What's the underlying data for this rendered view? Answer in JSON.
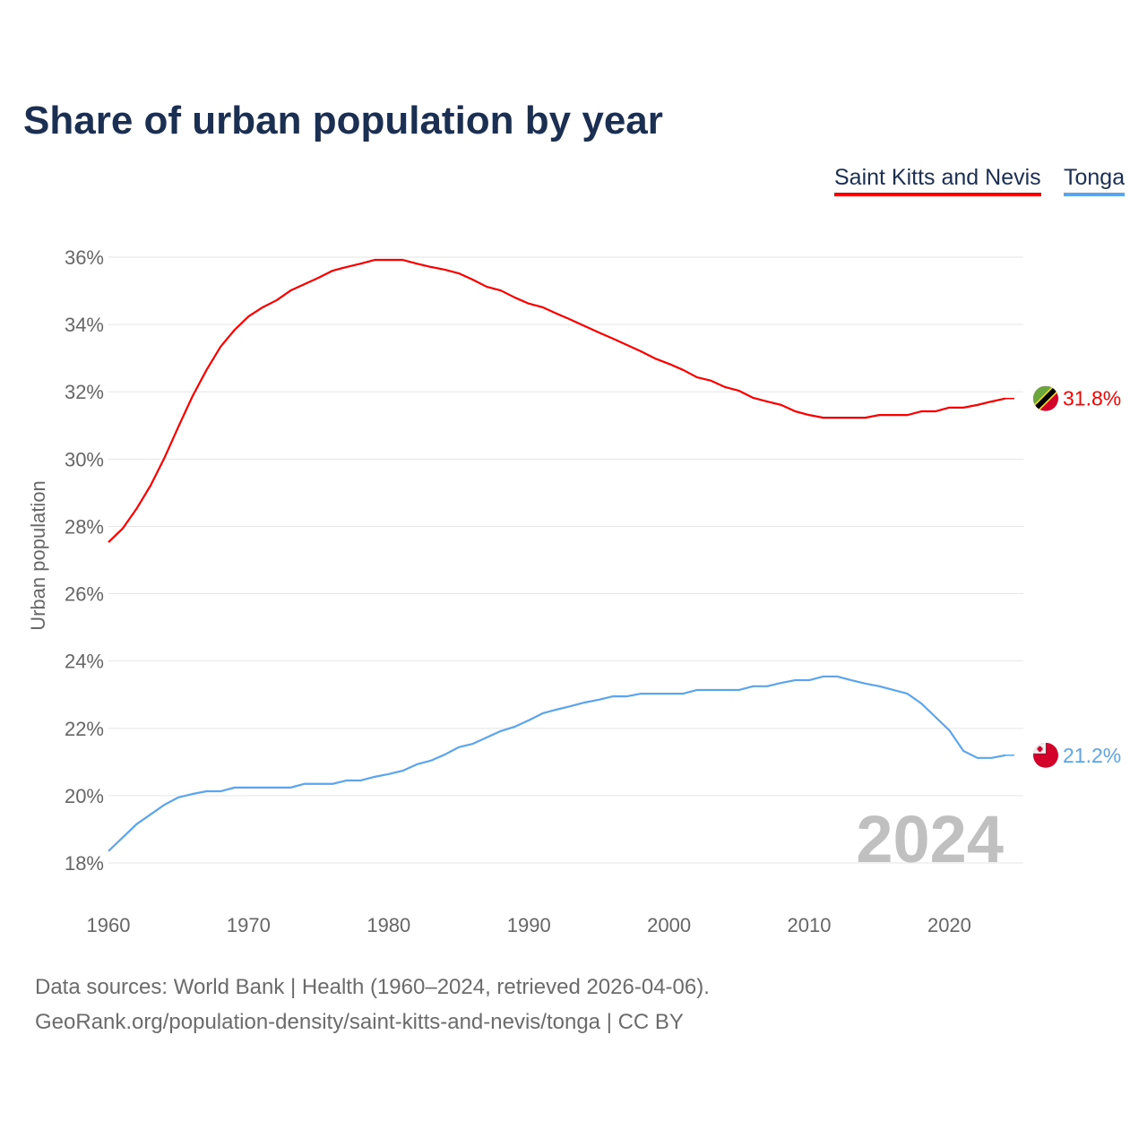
{
  "chart_data": {
    "type": "line",
    "title": "Share of urban population by year",
    "ylabel": "Urban population",
    "xlabel": "",
    "ylim": [
      18,
      36
    ],
    "xlim": [
      1960,
      2024
    ],
    "yticks": [
      "18%",
      "20%",
      "22%",
      "24%",
      "26%",
      "28%",
      "30%",
      "32%",
      "34%",
      "36%"
    ],
    "ytick_values": [
      18,
      20,
      22,
      24,
      26,
      28,
      30,
      32,
      34,
      36
    ],
    "xticks": [
      "1960",
      "1970",
      "1980",
      "1990",
      "2000",
      "2010",
      "2020"
    ],
    "xtick_values": [
      1960,
      1970,
      1980,
      1990,
      2000,
      2010,
      2020
    ],
    "grid": true,
    "legend_position": "top-right",
    "year_watermark": "2024",
    "x": [
      1960,
      1961,
      1962,
      1963,
      1964,
      1965,
      1966,
      1967,
      1968,
      1969,
      1970,
      1971,
      1972,
      1973,
      1974,
      1975,
      1976,
      1977,
      1978,
      1979,
      1980,
      1981,
      1982,
      1983,
      1984,
      1985,
      1986,
      1987,
      1988,
      1989,
      1990,
      1991,
      1992,
      1993,
      1994,
      1995,
      1996,
      1997,
      1998,
      1999,
      2000,
      2001,
      2002,
      2003,
      2004,
      2005,
      2006,
      2007,
      2008,
      2009,
      2010,
      2011,
      2012,
      2013,
      2014,
      2015,
      2016,
      2017,
      2018,
      2019,
      2020,
      2021,
      2022,
      2023,
      2024
    ],
    "series": [
      {
        "name": "Saint Kitts and Nevis",
        "color": "#ff0000",
        "end_label": "31.8%",
        "values": [
          27.53,
          27.93,
          28.52,
          29.21,
          30.04,
          30.97,
          31.87,
          32.65,
          33.34,
          33.84,
          34.24,
          34.51,
          34.72,
          35.01,
          35.2,
          35.39,
          35.6,
          35.71,
          35.81,
          35.92,
          35.92,
          35.92,
          35.81,
          35.71,
          35.63,
          35.52,
          35.33,
          35.12,
          35.01,
          34.8,
          34.62,
          34.51,
          34.32,
          34.14,
          33.95,
          33.76,
          33.58,
          33.39,
          33.2,
          32.99,
          32.83,
          32.65,
          32.43,
          32.33,
          32.14,
          32.03,
          31.82,
          31.71,
          31.61,
          31.42,
          31.31,
          31.23,
          31.23,
          31.23,
          31.23,
          31.31,
          31.31,
          31.31,
          31.42,
          31.42,
          31.53,
          31.53,
          31.61,
          31.71,
          31.8
        ]
      },
      {
        "name": "Tonga",
        "color": "#5aa5ee",
        "end_label": "21.2%",
        "values": [
          18.35,
          18.75,
          19.15,
          19.44,
          19.73,
          19.95,
          20.05,
          20.13,
          20.13,
          20.24,
          20.24,
          20.24,
          20.24,
          20.24,
          20.35,
          20.35,
          20.35,
          20.45,
          20.45,
          20.56,
          20.64,
          20.74,
          20.93,
          21.04,
          21.22,
          21.44,
          21.54,
          21.73,
          21.92,
          22.05,
          22.24,
          22.45,
          22.56,
          22.66,
          22.77,
          22.85,
          22.95,
          22.95,
          23.03,
          23.03,
          23.03,
          23.03,
          23.14,
          23.14,
          23.14,
          23.14,
          23.25,
          23.25,
          23.35,
          23.43,
          23.43,
          23.54,
          23.54,
          23.43,
          23.33,
          23.25,
          23.14,
          23.03,
          22.74,
          22.34,
          21.94,
          21.33,
          21.12,
          21.12,
          21.2
        ]
      }
    ]
  },
  "footer": {
    "line1": "Data sources: World Bank | Health (1960–2024, retrieved 2026-04-06).",
    "line2": "GeoRank.org/population-density/saint-kitts-and-nevis/tonga | CC BY"
  }
}
